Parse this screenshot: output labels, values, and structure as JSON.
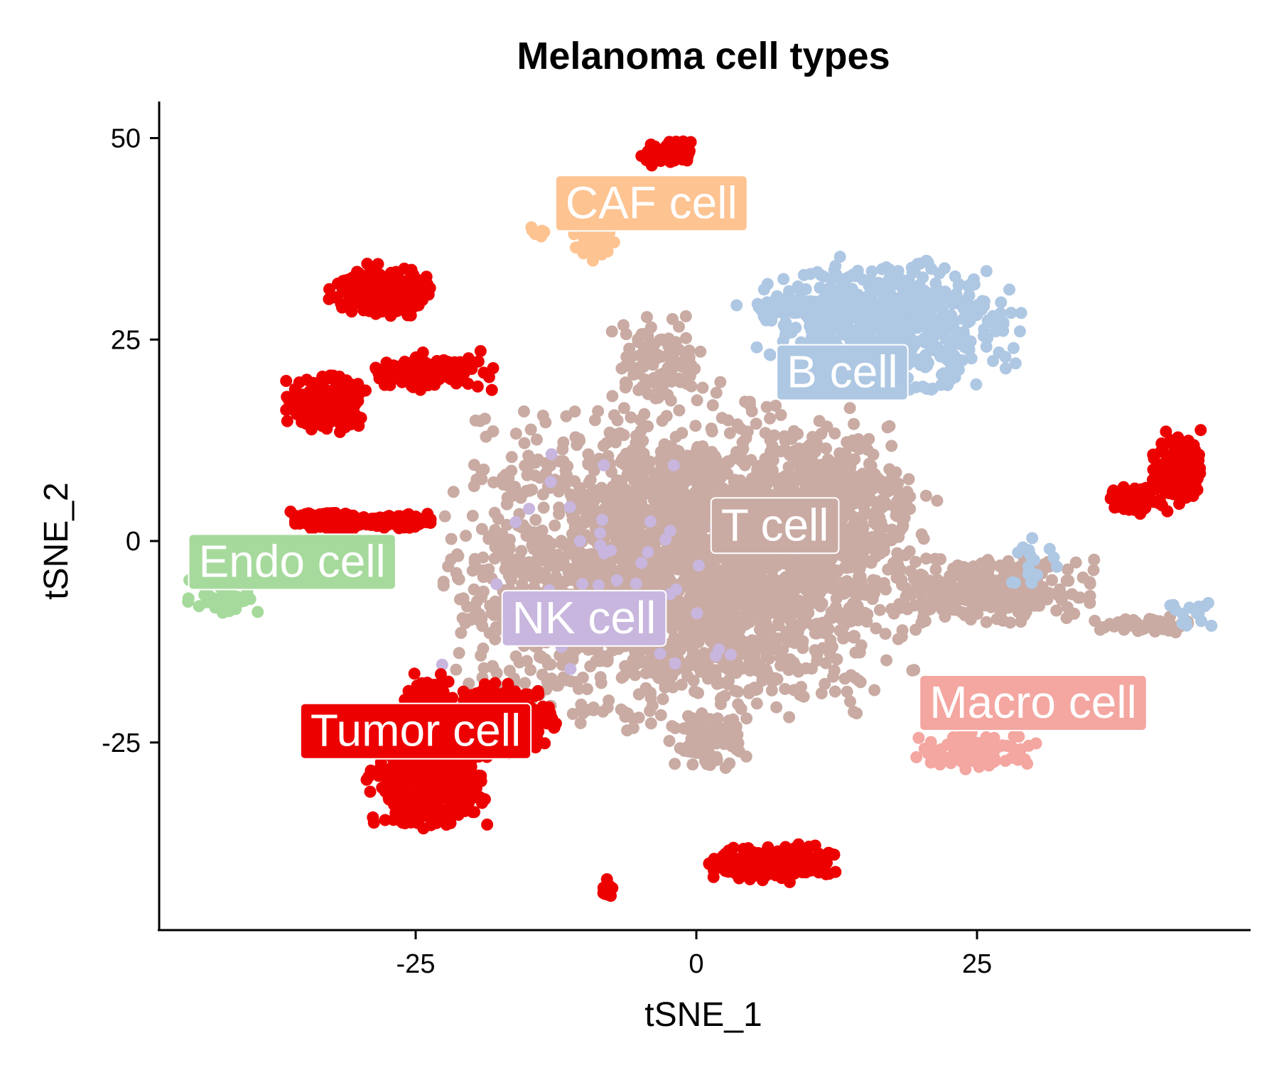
{
  "chart_data": {
    "type": "scatter",
    "title": "Melanoma cell types",
    "xlabel": "tSNE_1",
    "ylabel": "tSNE_2",
    "xlim": [
      -48,
      50
    ],
    "ylim": [
      -48,
      54
    ],
    "xticks": [
      -25,
      0,
      25
    ],
    "yticks": [
      -25,
      0,
      25,
      50
    ],
    "xtick_labels": [
      "-25",
      "0",
      "25"
    ],
    "ytick_labels": [
      "-25",
      "0",
      "25",
      "50"
    ],
    "grid": false,
    "legend": "none",
    "series": [
      {
        "name": "T cell",
        "color": "#C9ABA3",
        "label": {
          "x": 7,
          "y": 2
        },
        "clusters": [
          {
            "cx": -1,
            "cy": -3,
            "rx": 18,
            "ry": 17,
            "n": 2600
          },
          {
            "cx": 12,
            "cy": 4,
            "rx": 8,
            "ry": 9,
            "n": 320
          },
          {
            "cx": 26,
            "cy": -6,
            "rx": 8,
            "ry": 3.5,
            "n": 320
          },
          {
            "cx": -3,
            "cy": 22,
            "rx": 4,
            "ry": 5,
            "n": 110
          },
          {
            "cx": -17,
            "cy": -9,
            "rx": 4,
            "ry": 2,
            "n": 60
          },
          {
            "cx": 40,
            "cy": -10.5,
            "rx": 4,
            "ry": 1,
            "n": 60
          },
          {
            "cx": 1,
            "cy": -25,
            "rx": 3,
            "ry": 3,
            "n": 80
          }
        ]
      },
      {
        "name": "B cell",
        "color": "#AEC7E3",
        "label": {
          "x": 13,
          "y": 21
        },
        "clusters": [
          {
            "cx": 17,
            "cy": 27,
            "rx": 10,
            "ry": 7,
            "n": 620
          },
          {
            "cx": 9,
            "cy": 29,
            "rx": 5,
            "ry": 2,
            "n": 60
          },
          {
            "cx": 30,
            "cy": -3,
            "rx": 2,
            "ry": 3,
            "n": 20
          },
          {
            "cx": 44,
            "cy": -9,
            "rx": 2,
            "ry": 1.5,
            "n": 15
          }
        ]
      },
      {
        "name": "NK cell",
        "color": "#C8B6DE",
        "label": {
          "x": -10,
          "y": -9.5
        },
        "clusters": [
          {
            "cx": -6,
            "cy": -3,
            "rx": 14,
            "ry": 14,
            "n": 45
          }
        ]
      },
      {
        "name": "CAF cell",
        "color": "#FDC391",
        "label": {
          "x": -4,
          "y": 42
        },
        "clusters": [
          {
            "cx": -9,
            "cy": 37,
            "rx": 2,
            "ry": 2.5,
            "n": 50
          },
          {
            "cx": -14,
            "cy": 38.5,
            "rx": 1,
            "ry": 0.7,
            "n": 8
          }
        ]
      },
      {
        "name": "Endo cell",
        "color": "#A6DA9C",
        "label": {
          "x": -36,
          "y": -2.5
        },
        "clusters": [
          {
            "cx": -42,
            "cy": -7,
            "rx": 3,
            "ry": 2,
            "n": 40
          }
        ]
      },
      {
        "name": "Macro cell",
        "color": "#F4A6A0",
        "label": {
          "x": 30,
          "y": -20
        },
        "clusters": [
          {
            "cx": 25,
            "cy": -26,
            "rx": 5,
            "ry": 2,
            "n": 110
          }
        ]
      },
      {
        "name": "Tumor cell",
        "color": "#EC0000",
        "label": {
          "x": -25,
          "y": -23.5
        },
        "clusters": [
          {
            "cx": -24,
            "cy": -30,
            "rx": 4.5,
            "ry": 5,
            "n": 460
          },
          {
            "cx": -17,
            "cy": -22,
            "rx": 4,
            "ry": 4,
            "n": 320
          },
          {
            "cx": -24,
            "cy": -20,
            "rx": 2,
            "ry": 3,
            "n": 70
          },
          {
            "cx": -28,
            "cy": 31,
            "rx": 4,
            "ry": 3,
            "n": 260
          },
          {
            "cx": -33,
            "cy": 17,
            "rx": 3,
            "ry": 3,
            "n": 230
          },
          {
            "cx": -24,
            "cy": 21,
            "rx": 5,
            "ry": 2,
            "n": 140
          },
          {
            "cx": -33,
            "cy": 2.5,
            "rx": 3,
            "ry": 1,
            "n": 160
          },
          {
            "cx": -27,
            "cy": 2.5,
            "rx": 3,
            "ry": 0.8,
            "n": 90
          },
          {
            "cx": 43,
            "cy": 9,
            "rx": 2,
            "ry": 4,
            "n": 160
          },
          {
            "cx": 39,
            "cy": 5,
            "rx": 2.5,
            "ry": 1.5,
            "n": 70
          },
          {
            "cx": 7,
            "cy": -40,
            "rx": 5,
            "ry": 2,
            "n": 260
          },
          {
            "cx": -2.5,
            "cy": 48,
            "rx": 2,
            "ry": 1.5,
            "n": 70
          },
          {
            "cx": -8,
            "cy": -43,
            "rx": 0.5,
            "ry": 1.5,
            "n": 14
          }
        ]
      }
    ]
  }
}
